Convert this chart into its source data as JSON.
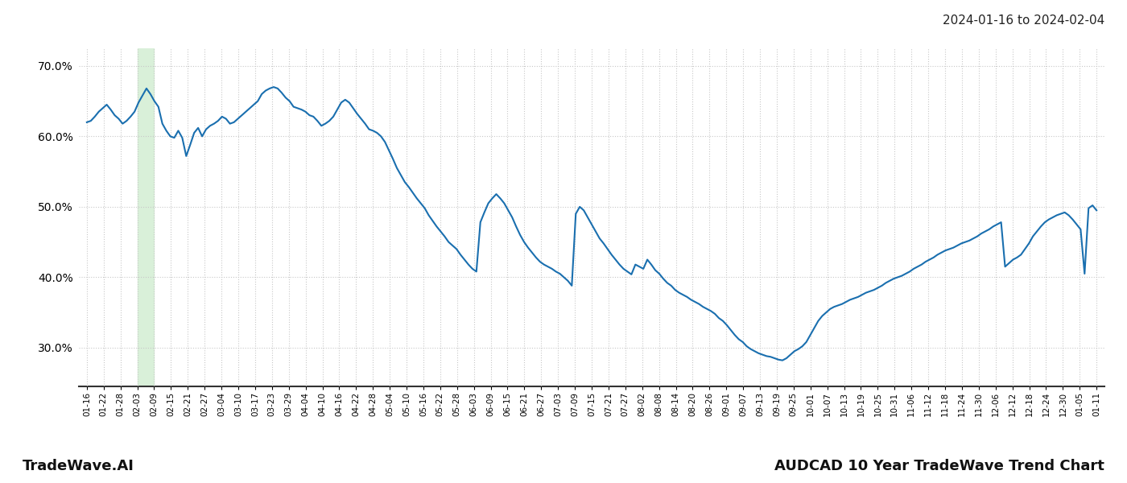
{
  "title_right": "2024-01-16 to 2024-02-04",
  "footer_left": "TradeWave.AI",
  "footer_right": "AUDCAD 10 Year TradeWave Trend Chart",
  "highlight_color": "#d9f0d9",
  "line_color": "#1a6faf",
  "line_width": 1.5,
  "background_color": "#ffffff",
  "grid_color": "#c8c8c8",
  "ylim": [
    0.245,
    0.725
  ],
  "yticks": [
    0.3,
    0.4,
    0.5,
    0.6,
    0.7
  ],
  "highlight_xstart": "02-03",
  "highlight_xend": "02-09",
  "x_tick_labels": [
    "01-16",
    "01-22",
    "01-28",
    "02-03",
    "02-09",
    "02-15",
    "02-21",
    "02-27",
    "03-04",
    "03-10",
    "03-17",
    "03-23",
    "03-29",
    "04-04",
    "04-10",
    "04-16",
    "04-22",
    "04-28",
    "05-04",
    "05-10",
    "05-16",
    "05-22",
    "05-28",
    "06-03",
    "06-09",
    "06-15",
    "06-21",
    "06-27",
    "07-03",
    "07-09",
    "07-15",
    "07-21",
    "07-27",
    "08-02",
    "08-08",
    "08-14",
    "08-20",
    "08-26",
    "09-01",
    "09-07",
    "09-13",
    "09-19",
    "09-25",
    "10-01",
    "10-07",
    "10-13",
    "10-19",
    "10-25",
    "10-31",
    "11-06",
    "11-12",
    "11-18",
    "11-24",
    "11-30",
    "12-06",
    "12-12",
    "12-18",
    "12-24",
    "12-30",
    "01-05",
    "01-11"
  ],
  "values": [
    0.62,
    0.622,
    0.628,
    0.635,
    0.64,
    0.645,
    0.638,
    0.63,
    0.625,
    0.618,
    0.622,
    0.628,
    0.635,
    0.648,
    0.658,
    0.668,
    0.66,
    0.65,
    0.642,
    0.618,
    0.608,
    0.6,
    0.598,
    0.608,
    0.598,
    0.572,
    0.588,
    0.605,
    0.612,
    0.6,
    0.61,
    0.615,
    0.618,
    0.622,
    0.628,
    0.625,
    0.618,
    0.62,
    0.625,
    0.63,
    0.635,
    0.64,
    0.645,
    0.65,
    0.66,
    0.665,
    0.668,
    0.67,
    0.668,
    0.662,
    0.655,
    0.65,
    0.642,
    0.64,
    0.638,
    0.635,
    0.63,
    0.628,
    0.622,
    0.615,
    0.618,
    0.622,
    0.628,
    0.638,
    0.648,
    0.652,
    0.648,
    0.64,
    0.632,
    0.625,
    0.618,
    0.61,
    0.608,
    0.605,
    0.6,
    0.592,
    0.58,
    0.568,
    0.555,
    0.545,
    0.535,
    0.528,
    0.52,
    0.512,
    0.505,
    0.498,
    0.488,
    0.48,
    0.472,
    0.465,
    0.458,
    0.45,
    0.445,
    0.44,
    0.432,
    0.425,
    0.418,
    0.412,
    0.408,
    0.478,
    0.492,
    0.505,
    0.512,
    0.518,
    0.512,
    0.505,
    0.495,
    0.485,
    0.472,
    0.46,
    0.45,
    0.442,
    0.435,
    0.428,
    0.422,
    0.418,
    0.415,
    0.412,
    0.408,
    0.405,
    0.4,
    0.395,
    0.388,
    0.49,
    0.5,
    0.495,
    0.485,
    0.475,
    0.465,
    0.455,
    0.448,
    0.44,
    0.432,
    0.425,
    0.418,
    0.412,
    0.408,
    0.404,
    0.418,
    0.415,
    0.412,
    0.425,
    0.418,
    0.41,
    0.405,
    0.398,
    0.392,
    0.388,
    0.382,
    0.378,
    0.375,
    0.372,
    0.368,
    0.365,
    0.362,
    0.358,
    0.355,
    0.352,
    0.348,
    0.342,
    0.338,
    0.332,
    0.325,
    0.318,
    0.312,
    0.308,
    0.302,
    0.298,
    0.295,
    0.292,
    0.29,
    0.288,
    0.287,
    0.285,
    0.283,
    0.282,
    0.285,
    0.29,
    0.295,
    0.298,
    0.302,
    0.308,
    0.318,
    0.328,
    0.338,
    0.345,
    0.35,
    0.355,
    0.358,
    0.36,
    0.362,
    0.365,
    0.368,
    0.37,
    0.372,
    0.375,
    0.378,
    0.38,
    0.382,
    0.385,
    0.388,
    0.392,
    0.395,
    0.398,
    0.4,
    0.402,
    0.405,
    0.408,
    0.412,
    0.415,
    0.418,
    0.422,
    0.425,
    0.428,
    0.432,
    0.435,
    0.438,
    0.44,
    0.442,
    0.445,
    0.448,
    0.45,
    0.452,
    0.455,
    0.458,
    0.462,
    0.465,
    0.468,
    0.472,
    0.475,
    0.478,
    0.415,
    0.42,
    0.425,
    0.428,
    0.432,
    0.44,
    0.448,
    0.458,
    0.465,
    0.472,
    0.478,
    0.482,
    0.485,
    0.488,
    0.49,
    0.492,
    0.488,
    0.482,
    0.475,
    0.468,
    0.405,
    0.498,
    0.502,
    0.495
  ]
}
